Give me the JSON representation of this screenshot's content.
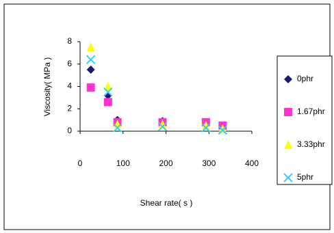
{
  "chart_data": {
    "type": "scatter",
    "x_label": "Shear rate( s )",
    "y_label": "Viscosity( MPa )",
    "x": [
      25,
      65,
      87,
      192,
      293,
      332
    ],
    "series": [
      {
        "name": "0phr",
        "color": "#1a1a6e",
        "marker": "diamond",
        "values": [
          5.5,
          3.2,
          1.0,
          0.9,
          0.8,
          0.5
        ]
      },
      {
        "name": "1.67phr",
        "color": "#ff33cc",
        "marker": "square",
        "values": [
          3.9,
          2.6,
          0.8,
          0.8,
          0.8,
          0.5
        ]
      },
      {
        "name": "3.33phr",
        "color": "#ffff00",
        "marker": "triangle",
        "values": [
          7.5,
          4.0,
          0.6,
          0.6,
          0.5,
          0.2
        ]
      },
      {
        "name": "5phr",
        "color": "#33ccff",
        "marker": "x",
        "values": [
          6.4,
          3.5,
          0.3,
          0.4,
          0.3,
          0.1
        ]
      }
    ],
    "xlim": [
      0,
      400
    ],
    "xticks": [
      0,
      100,
      200,
      300,
      400
    ],
    "ylim": [
      0,
      8
    ],
    "yticks": [
      0,
      2,
      4,
      6,
      8
    ],
    "grid": false,
    "legend": "right"
  }
}
